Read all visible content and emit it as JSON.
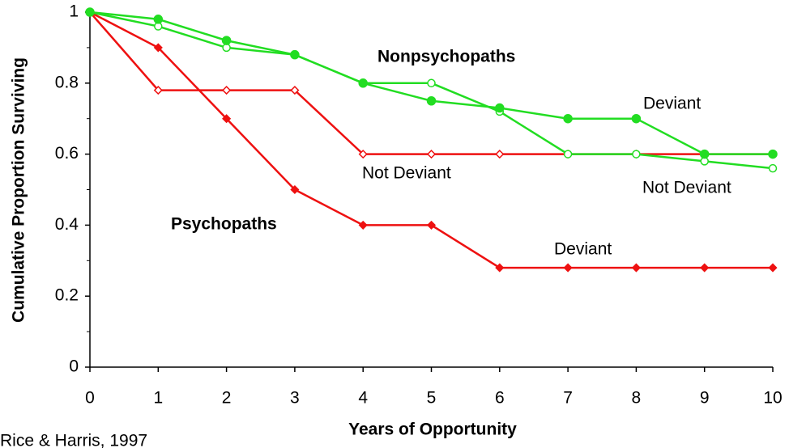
{
  "chart_data": {
    "type": "line",
    "xlabel": "Years of Opportunity",
    "ylabel": "Cumulative Proportion Surviving",
    "x": [
      0,
      1,
      2,
      3,
      4,
      5,
      6,
      7,
      8,
      9,
      10
    ],
    "series": [
      {
        "name": "Not Deviant",
        "color": "#ee1111",
        "marker": "open-diamond",
        "values": [
          1,
          0.78,
          0.78,
          0.78,
          0.6,
          0.6,
          0.6,
          0.6,
          0.6,
          0.6,
          0.6
        ]
      },
      {
        "name": "Deviant",
        "color": "#ee1111",
        "marker": "diamond",
        "values": [
          1,
          0.9,
          0.7,
          0.5,
          0.4,
          0.4,
          0.28,
          0.28,
          0.28,
          0.28,
          0.28
        ]
      },
      {
        "name": "Not Deviant",
        "color": "#22dd22",
        "marker": "open-circle",
        "values": [
          1,
          0.96,
          0.9,
          0.88,
          0.8,
          0.8,
          0.72,
          0.6,
          0.6,
          0.58,
          0.56
        ]
      },
      {
        "name": "Deviant",
        "color": "#22dd22",
        "marker": "circle",
        "values": [
          1,
          0.98,
          0.92,
          0.88,
          0.8,
          0.75,
          0.73,
          0.7,
          0.7,
          0.6,
          0.6
        ]
      }
    ],
    "annotations": [
      "Psychopaths",
      "Nonpsychopaths"
    ],
    "source": "Rice & Harris, 1997",
    "xlim": [
      0,
      10
    ],
    "xticks": [
      0,
      1,
      2,
      3,
      4,
      5,
      6,
      7,
      8,
      9,
      10
    ],
    "ylim": [
      0,
      1
    ],
    "yticks": [
      0,
      0.2,
      0.4,
      0.6,
      0.8,
      1
    ],
    "grid": false
  }
}
